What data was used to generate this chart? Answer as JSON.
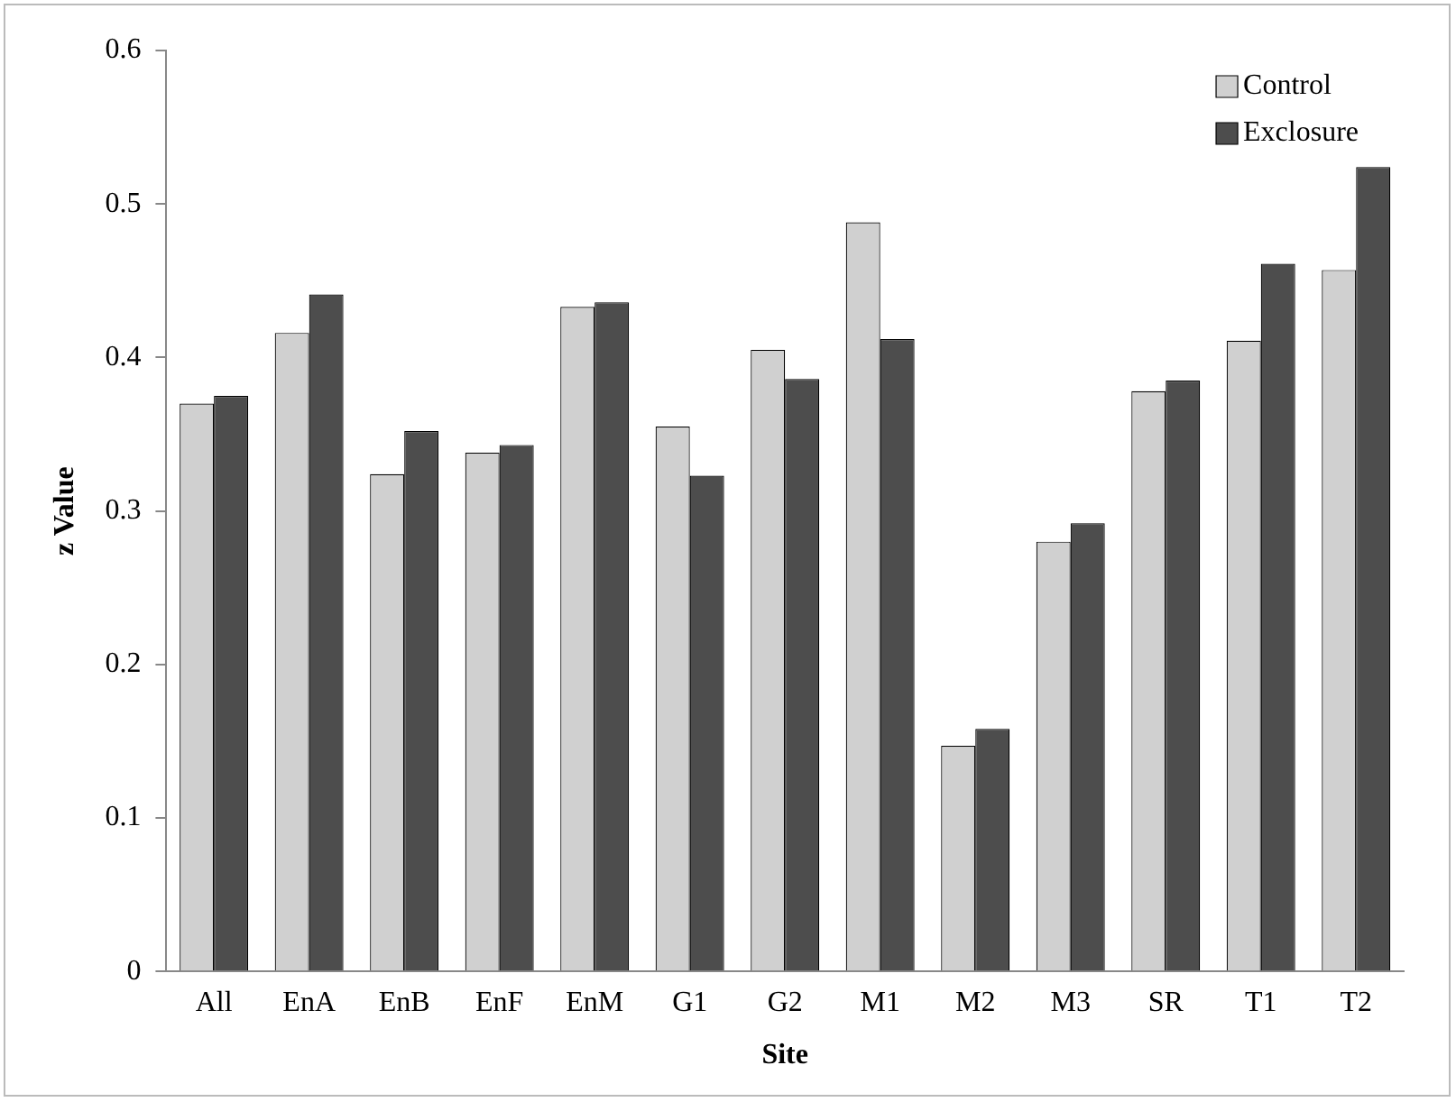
{
  "chart_data": {
    "type": "bar",
    "xlabel": "Site",
    "ylabel": "z Value",
    "categories": [
      "All",
      "EnA",
      "EnB",
      "EnF",
      "EnM",
      "G1",
      "G2",
      "M1",
      "M2",
      "M3",
      "SR",
      "T1",
      "T2"
    ],
    "series": [
      {
        "name": "Control",
        "color": "#d0d0d0",
        "values": [
          0.37,
          0.416,
          0.324,
          0.338,
          0.433,
          0.355,
          0.405,
          0.488,
          0.147,
          0.28,
          0.378,
          0.411,
          0.457
        ]
      },
      {
        "name": "Exclosure",
        "color": "#4d4d4d",
        "values": [
          0.375,
          0.441,
          0.352,
          0.343,
          0.436,
          0.323,
          0.386,
          0.412,
          0.158,
          0.292,
          0.385,
          0.461,
          0.524
        ]
      }
    ],
    "ylim": [
      0,
      0.6
    ],
    "yticks": [
      0,
      0.1,
      0.2,
      0.3,
      0.4,
      0.5,
      0.6
    ],
    "grid": false,
    "legend": "top right"
  }
}
